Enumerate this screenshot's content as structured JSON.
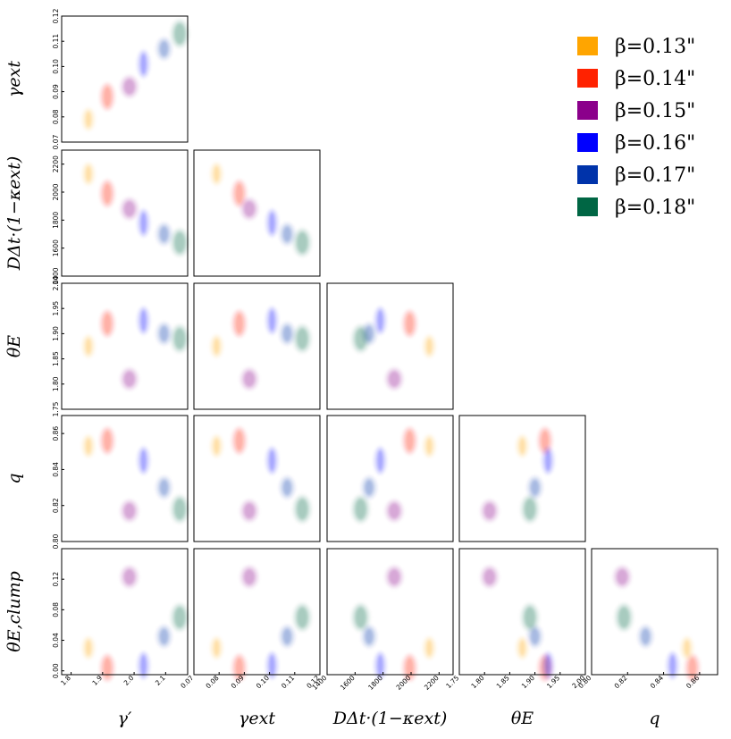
{
  "chart_data": {
    "type": "scatter",
    "subtype": "corner-plot",
    "parameters": [
      {
        "key": "gamma",
        "label": "γ′"
      },
      {
        "key": "gamma_ext",
        "label": "γext"
      },
      {
        "key": "D",
        "label": "DΔt·(1−κext)"
      },
      {
        "key": "thetaE",
        "label": "θE"
      },
      {
        "key": "q",
        "label": "q"
      },
      {
        "key": "thetaClump",
        "label": "θE,clump"
      }
    ],
    "ranges": {
      "gamma": [
        1.77,
        2.17
      ],
      "gamma_ext": [
        0.07,
        0.12
      ],
      "D": [
        1400,
        2300
      ],
      "thetaE": [
        1.75,
        2.0
      ],
      "q": [
        0.8,
        0.87
      ],
      "thetaClump": [
        -0.005,
        0.16
      ]
    },
    "ticks": {
      "gamma": [
        "1.8",
        "1.9",
        "2.0",
        "2.1",
        "2.2"
      ],
      "gamma_ext": [
        "0.07",
        "0.08",
        "0.09",
        "0.10",
        "0.11",
        "0.12"
      ],
      "D": [
        "1400",
        "1600",
        "1800",
        "2000",
        "2200"
      ],
      "thetaE": [
        "1.75",
        "1.80",
        "1.85",
        "1.90",
        "1.95",
        "2.00"
      ],
      "q": [
        "0.80",
        "0.82",
        "0.84",
        "0.86"
      ],
      "thetaClump": [
        "0.00",
        "0.04",
        "0.08",
        "0.12"
      ]
    },
    "series": [
      {
        "name": "β=0.13\"",
        "color": "#ffa500",
        "gamma": 1.855,
        "gamma_ext": 0.079,
        "D": 2130,
        "thetaE": 1.875,
        "q": 0.853,
        "thetaClump": 0.03
      },
      {
        "name": "β=0.14\"",
        "color": "#ff2200",
        "gamma": 1.915,
        "gamma_ext": 0.088,
        "D": 1990,
        "thetaE": 1.92,
        "q": 0.856,
        "thetaClump": 0.004
      },
      {
        "name": "β=0.15\"",
        "color": "#8b008b",
        "gamma": 1.985,
        "gamma_ext": 0.092,
        "D": 1880,
        "thetaE": 1.81,
        "q": 0.817,
        "thetaClump": 0.123
      },
      {
        "name": "β=0.16\"",
        "color": "#0000ff",
        "gamma": 2.03,
        "gamma_ext": 0.101,
        "D": 1780,
        "thetaE": 1.926,
        "q": 0.845,
        "thetaClump": 0.007
      },
      {
        "name": "β=0.17\"",
        "color": "#0033aa",
        "gamma": 2.095,
        "gamma_ext": 0.107,
        "D": 1700,
        "thetaE": 1.9,
        "q": 0.83,
        "thetaClump": 0.045
      },
      {
        "name": "β=0.18\"",
        "color": "#006644",
        "gamma": 2.145,
        "gamma_ext": 0.113,
        "D": 1640,
        "thetaE": 1.89,
        "q": 0.818,
        "thetaClump": 0.07
      }
    ],
    "legend": "top-right",
    "grid": false
  }
}
